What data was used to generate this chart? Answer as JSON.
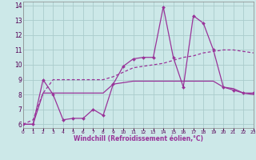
{
  "x": [
    0,
    1,
    2,
    3,
    4,
    5,
    6,
    7,
    8,
    9,
    10,
    11,
    12,
    13,
    14,
    15,
    16,
    17,
    18,
    19,
    20,
    21,
    22,
    23
  ],
  "line1": [
    6.0,
    6.0,
    9.0,
    8.0,
    6.3,
    6.4,
    6.4,
    7.0,
    6.6,
    8.7,
    9.9,
    10.4,
    10.5,
    10.5,
    13.9,
    10.5,
    8.5,
    13.3,
    12.8,
    11.0,
    8.5,
    8.3,
    8.1,
    8.1
  ],
  "line2": [
    6.0,
    6.0,
    8.1,
    8.1,
    8.1,
    8.1,
    8.1,
    8.1,
    8.1,
    8.7,
    8.8,
    8.9,
    8.9,
    8.9,
    8.9,
    8.9,
    8.9,
    8.9,
    8.9,
    8.9,
    8.5,
    8.4,
    8.1,
    8.0
  ],
  "line3": [
    6.0,
    6.3,
    8.1,
    9.0,
    9.0,
    9.0,
    9.0,
    9.0,
    9.0,
    9.2,
    9.5,
    9.8,
    9.9,
    10.0,
    10.1,
    10.3,
    10.5,
    10.6,
    10.8,
    10.9,
    11.0,
    11.0,
    10.9,
    10.8
  ],
  "line_color": "#993399",
  "background_color": "#cce8e8",
  "grid_color": "#aacccc",
  "xlabel": "Windchill (Refroidissement éolien,°C)",
  "ylim": [
    5.75,
    14.25
  ],
  "xlim": [
    0,
    23
  ],
  "yticks": [
    6,
    7,
    8,
    9,
    10,
    11,
    12,
    13,
    14
  ],
  "xticks": [
    0,
    1,
    2,
    3,
    4,
    5,
    6,
    7,
    8,
    9,
    10,
    11,
    12,
    13,
    14,
    15,
    16,
    17,
    18,
    19,
    20,
    21,
    22,
    23
  ]
}
